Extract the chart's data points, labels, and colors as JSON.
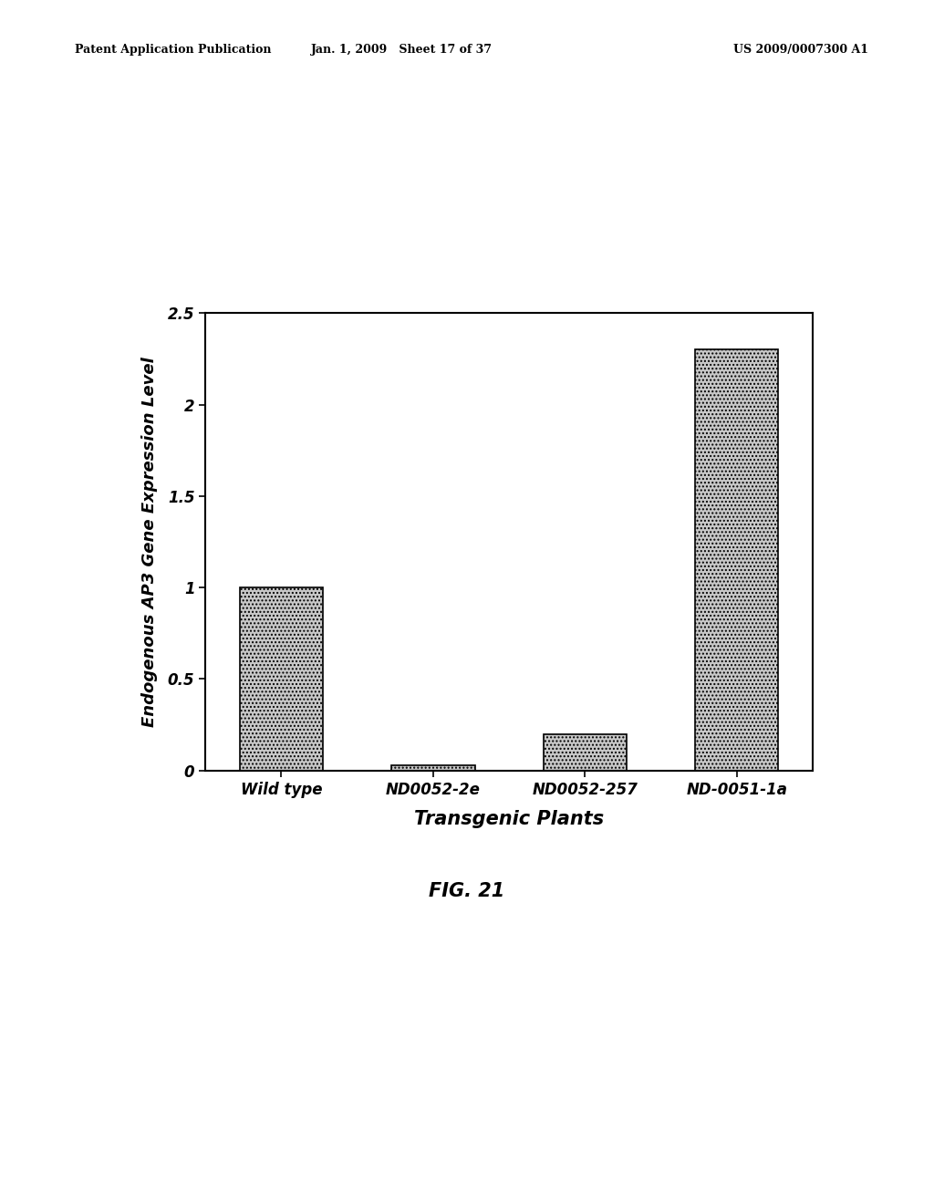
{
  "categories": [
    "Wild type",
    "ND0052-2e",
    "ND0052-257",
    "ND-0051-1a"
  ],
  "values": [
    1.0,
    0.03,
    0.2,
    2.3
  ],
  "bar_color": "#c8c8c8",
  "bar_hatch": "....",
  "bar_edgecolor": "#000000",
  "ylabel": "Endogenous AP3 Gene Expression Level",
  "xlabel": "Transgenic Plants",
  "ylim": [
    0,
    2.5
  ],
  "yticks": [
    0,
    0.5,
    1,
    1.5,
    2,
    2.5
  ],
  "fig_caption": "FIG. 21",
  "header_left": "Patent Application Publication",
  "header_center": "Jan. 1, 2009   Sheet 17 of 37",
  "header_right": "US 2009/0007300 A1",
  "background_color": "#ffffff",
  "bar_width": 0.55,
  "axis_fontsize": 13,
  "tick_fontsize": 12,
  "caption_fontsize": 15,
  "header_fontsize": 9,
  "xlabel_fontsize": 15
}
